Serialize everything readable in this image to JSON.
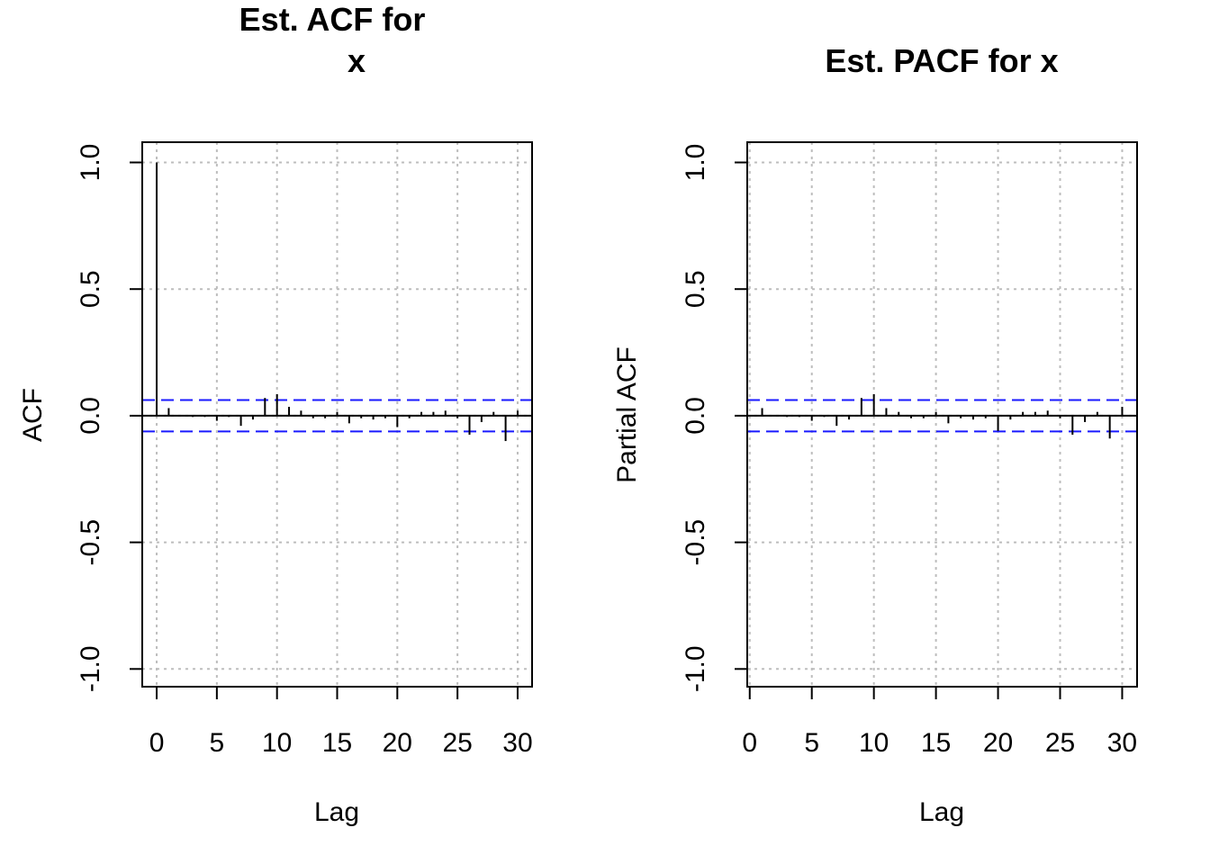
{
  "colors": {
    "ci_band": "#1a1aff",
    "grid": "#bdbdbd",
    "spike": "#000000"
  },
  "chart_data": [
    {
      "type": "bar",
      "title": "Est. ACF for x",
      "title_lines": [
        "Est. ACF for",
        "x"
      ],
      "xlabel": "Lag",
      "ylabel": "ACF",
      "xlim": [
        -1.2,
        31.2
      ],
      "ylim": [
        -1.07,
        1.08
      ],
      "x_ticks": [
        0,
        5,
        10,
        15,
        20,
        25,
        30
      ],
      "x_tick_labels": [
        "0",
        "5",
        "10",
        "15",
        "20",
        "25",
        "30"
      ],
      "y_ticks": [
        -1.0,
        -0.5,
        0.0,
        0.5,
        1.0
      ],
      "y_tick_labels": [
        "-1.0",
        "-0.5",
        "0.0",
        "0.5",
        "1.0"
      ],
      "grid": true,
      "ci": [
        0.062,
        -0.062
      ],
      "lags": [
        0,
        1,
        2,
        3,
        4,
        5,
        6,
        7,
        8,
        9,
        10,
        11,
        12,
        13,
        14,
        15,
        16,
        17,
        18,
        19,
        20,
        21,
        22,
        23,
        24,
        25,
        26,
        27,
        28,
        29,
        30
      ],
      "values": [
        1.0,
        0.03,
        0.0,
        -0.005,
        -0.005,
        -0.02,
        -0.005,
        -0.04,
        -0.015,
        0.07,
        0.085,
        0.035,
        0.02,
        -0.01,
        -0.01,
        0.015,
        -0.03,
        -0.01,
        -0.015,
        -0.01,
        -0.045,
        -0.01,
        0.015,
        0.015,
        0.02,
        -0.01,
        -0.075,
        -0.025,
        0.015,
        -0.1,
        0.02
      ]
    },
    {
      "type": "bar",
      "title": "Est. PACF for x",
      "title_lines": [
        "Est. PACF for x"
      ],
      "xlabel": "Lag",
      "ylabel": "Partial ACF",
      "xlim": [
        -0.2,
        31.2
      ],
      "ylim": [
        -1.07,
        1.08
      ],
      "x_ticks": [
        0,
        5,
        10,
        15,
        20,
        25,
        30
      ],
      "x_tick_labels": [
        "0",
        "5",
        "10",
        "15",
        "20",
        "25",
        "30"
      ],
      "y_ticks": [
        -1.0,
        -0.5,
        0.0,
        0.5,
        1.0
      ],
      "y_tick_labels": [
        "-1.0",
        "-0.5",
        "0.0",
        "0.5",
        "1.0"
      ],
      "grid": true,
      "ci": [
        0.062,
        -0.062
      ],
      "lags": [
        1,
        2,
        3,
        4,
        5,
        6,
        7,
        8,
        9,
        10,
        11,
        12,
        13,
        14,
        15,
        16,
        17,
        18,
        19,
        20,
        21,
        22,
        23,
        24,
        25,
        26,
        27,
        28,
        29,
        30
      ],
      "values": [
        0.03,
        0.0,
        -0.005,
        -0.005,
        -0.02,
        -0.005,
        -0.04,
        -0.015,
        0.07,
        0.085,
        0.03,
        0.015,
        -0.01,
        -0.01,
        0.015,
        -0.03,
        -0.01,
        -0.015,
        -0.01,
        -0.06,
        -0.015,
        0.015,
        0.015,
        0.02,
        -0.01,
        -0.075,
        -0.025,
        0.015,
        -0.09,
        0.035
      ]
    }
  ]
}
